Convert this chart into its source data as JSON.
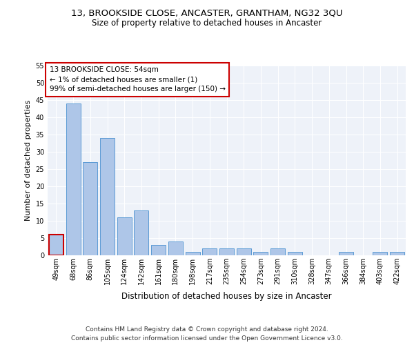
{
  "title": "13, BROOKSIDE CLOSE, ANCASTER, GRANTHAM, NG32 3QU",
  "subtitle": "Size of property relative to detached houses in Ancaster",
  "xlabel": "Distribution of detached houses by size in Ancaster",
  "ylabel": "Number of detached properties",
  "categories": [
    "49sqm",
    "68sqm",
    "86sqm",
    "105sqm",
    "124sqm",
    "142sqm",
    "161sqm",
    "180sqm",
    "198sqm",
    "217sqm",
    "235sqm",
    "254sqm",
    "273sqm",
    "291sqm",
    "310sqm",
    "328sqm",
    "347sqm",
    "366sqm",
    "384sqm",
    "403sqm",
    "422sqm"
  ],
  "values": [
    6,
    44,
    27,
    34,
    11,
    13,
    3,
    4,
    1,
    2,
    2,
    2,
    1,
    2,
    1,
    0,
    0,
    1,
    0,
    1,
    1
  ],
  "bar_color": "#aec6e8",
  "bar_edge_color": "#5b9bd5",
  "annotation_box_color": "#ffffff",
  "annotation_border_color": "#cc0000",
  "annotation_lines": [
    "13 BROOKSIDE CLOSE: 54sqm",
    "← 1% of detached houses are smaller (1)",
    "99% of semi-detached houses are larger (150) →"
  ],
  "ylim": [
    0,
    55
  ],
  "yticks": [
    0,
    5,
    10,
    15,
    20,
    25,
    30,
    35,
    40,
    45,
    50,
    55
  ],
  "footer_lines": [
    "Contains HM Land Registry data © Crown copyright and database right 2024.",
    "Contains public sector information licensed under the Open Government Licence v3.0."
  ],
  "title_fontsize": 9.5,
  "subtitle_fontsize": 8.5,
  "xlabel_fontsize": 8.5,
  "ylabel_fontsize": 8,
  "tick_fontsize": 7,
  "footer_fontsize": 6.5,
  "annotation_fontsize": 7.5,
  "bg_color": "#eef2f9",
  "fig_bg_color": "#ffffff",
  "grid_color": "#ffffff",
  "grid_linewidth": 0.8
}
